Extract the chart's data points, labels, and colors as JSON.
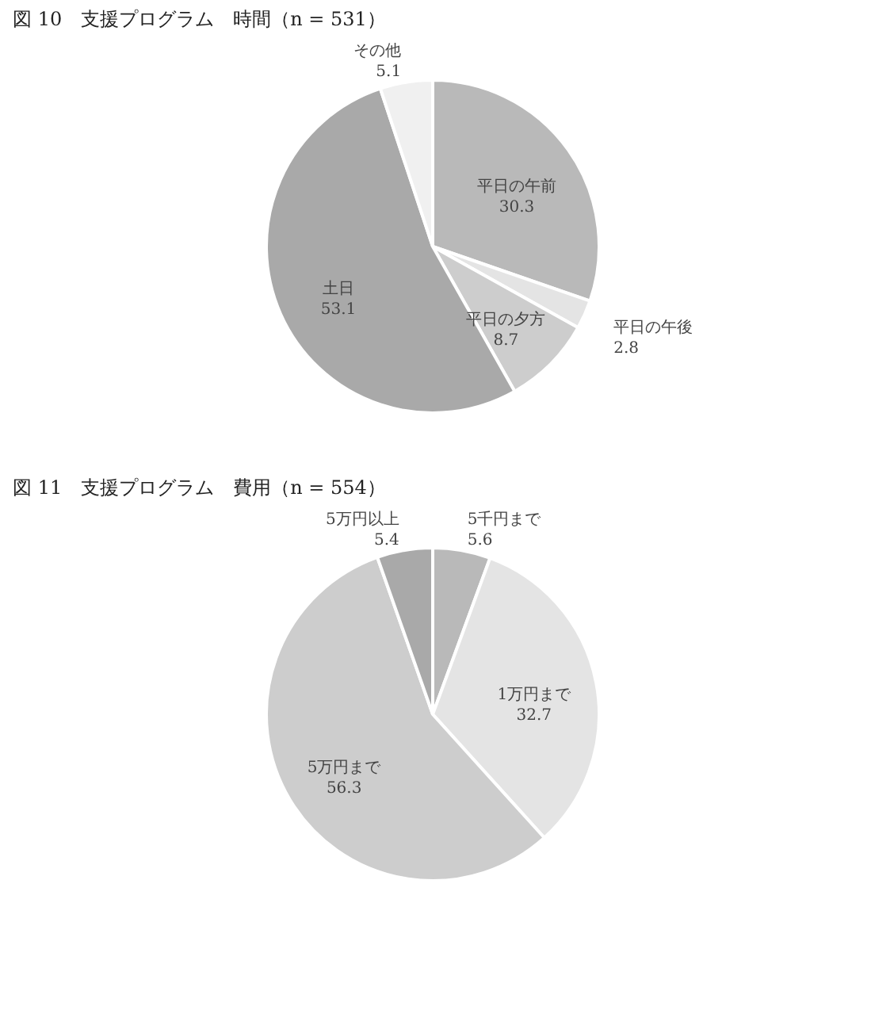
{
  "chart_data": [
    {
      "type": "pie",
      "title": "図 10　支援プログラム　時間（n = 531）",
      "categories": [
        "平日の午前",
        "平日の午後",
        "平日の夕方",
        "土日",
        "その他"
      ],
      "values": [
        30.3,
        2.8,
        8.7,
        53.1,
        5.1
      ],
      "colors": [
        "#b9b9b9",
        "#e4e4e4",
        "#cdcdcd",
        "#a9a9a9",
        "#f0f0f0"
      ],
      "data_labels": true,
      "legend": false
    },
    {
      "type": "pie",
      "title": "図 11　支援プログラム　費用（n = 554）",
      "categories": [
        "5千円まで",
        "1万円まで",
        "5万円まで",
        "5万円以上"
      ],
      "values": [
        5.6,
        32.7,
        56.3,
        5.4
      ],
      "colors": [
        "#b3b3b3",
        "#e2e2e2",
        "#d3d3d3",
        "#9d9d9d"
      ],
      "data_labels": true,
      "legend": false
    }
  ]
}
